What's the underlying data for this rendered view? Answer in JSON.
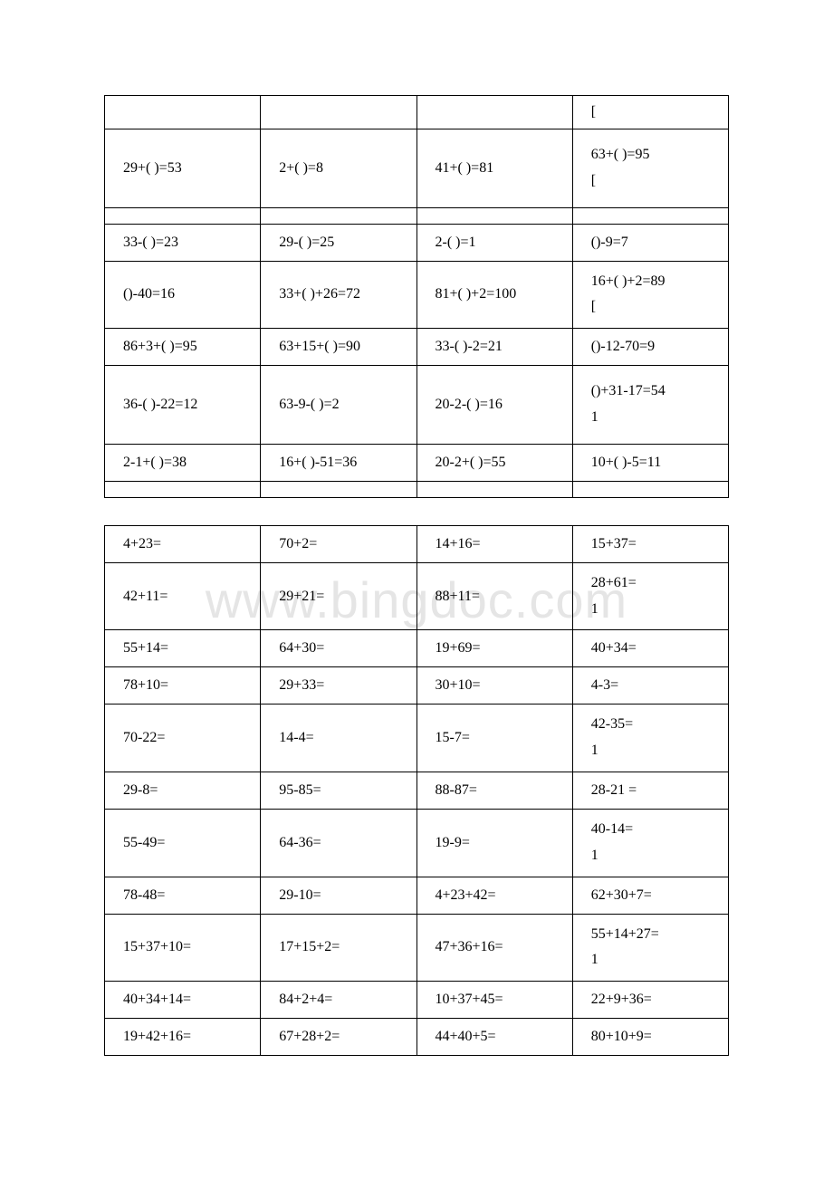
{
  "watermark": "www.bingdoc.com",
  "table1": {
    "rows": [
      [
        "",
        "",
        "",
        "["
      ],
      [
        "29+( )=53",
        "2+( )=8",
        "41+( )=81",
        "63+( )=95\n["
      ],
      [
        "",
        "",
        "",
        ""
      ],
      [
        "33-( )=23",
        "29-( )=25",
        "2-( )=1",
        "()-9=7"
      ],
      [
        "()-40=16",
        "33+( )+26=72",
        "81+( )+2=100",
        "16+( )+2=89\n["
      ],
      [
        "86+3+( )=95",
        "63+15+( )=90",
        "33-( )-2=21",
        "()-12-70=9"
      ],
      [
        "36-( )-22=12",
        "63-9-( )=2",
        "20-2-( )=16",
        "()+31-17=54\n1"
      ],
      [
        "2-1+( )=38",
        "16+( )-51=36",
        "20-2+( )=55",
        "10+( )-5=11"
      ],
      [
        "",
        "",
        "",
        ""
      ]
    ]
  },
  "table2": {
    "rows": [
      [
        "4+23=",
        "70+2=",
        "14+16=",
        "15+37="
      ],
      [
        "42+11=",
        "29+21=",
        "88+11=",
        "28+61=\n1"
      ],
      [
        "55+14=",
        "64+30=",
        "19+69=",
        "40+34="
      ],
      [
        "78+10=",
        "29+33=",
        "30+10=",
        "4-3="
      ],
      [
        "70-22=",
        "14-4=",
        "15-7=",
        "42-35=\n1"
      ],
      [
        "29-8=",
        "95-85=",
        "88-87=",
        "28-21 ="
      ],
      [
        "55-49=",
        "64-36=",
        "19-9=",
        "40-14=\n1"
      ],
      [
        "78-48=",
        "29-10=",
        "4+23+42=",
        "62+30+7="
      ],
      [
        "15+37+10=",
        "17+15+2=",
        "47+36+16=",
        "55+14+27=\n1"
      ],
      [
        "40+34+14=",
        "84+2+4=",
        "10+37+45=",
        "22+9+36="
      ],
      [
        "19+42+16=",
        "67+28+2=",
        "44+40+5=",
        "80+10+9="
      ]
    ]
  }
}
